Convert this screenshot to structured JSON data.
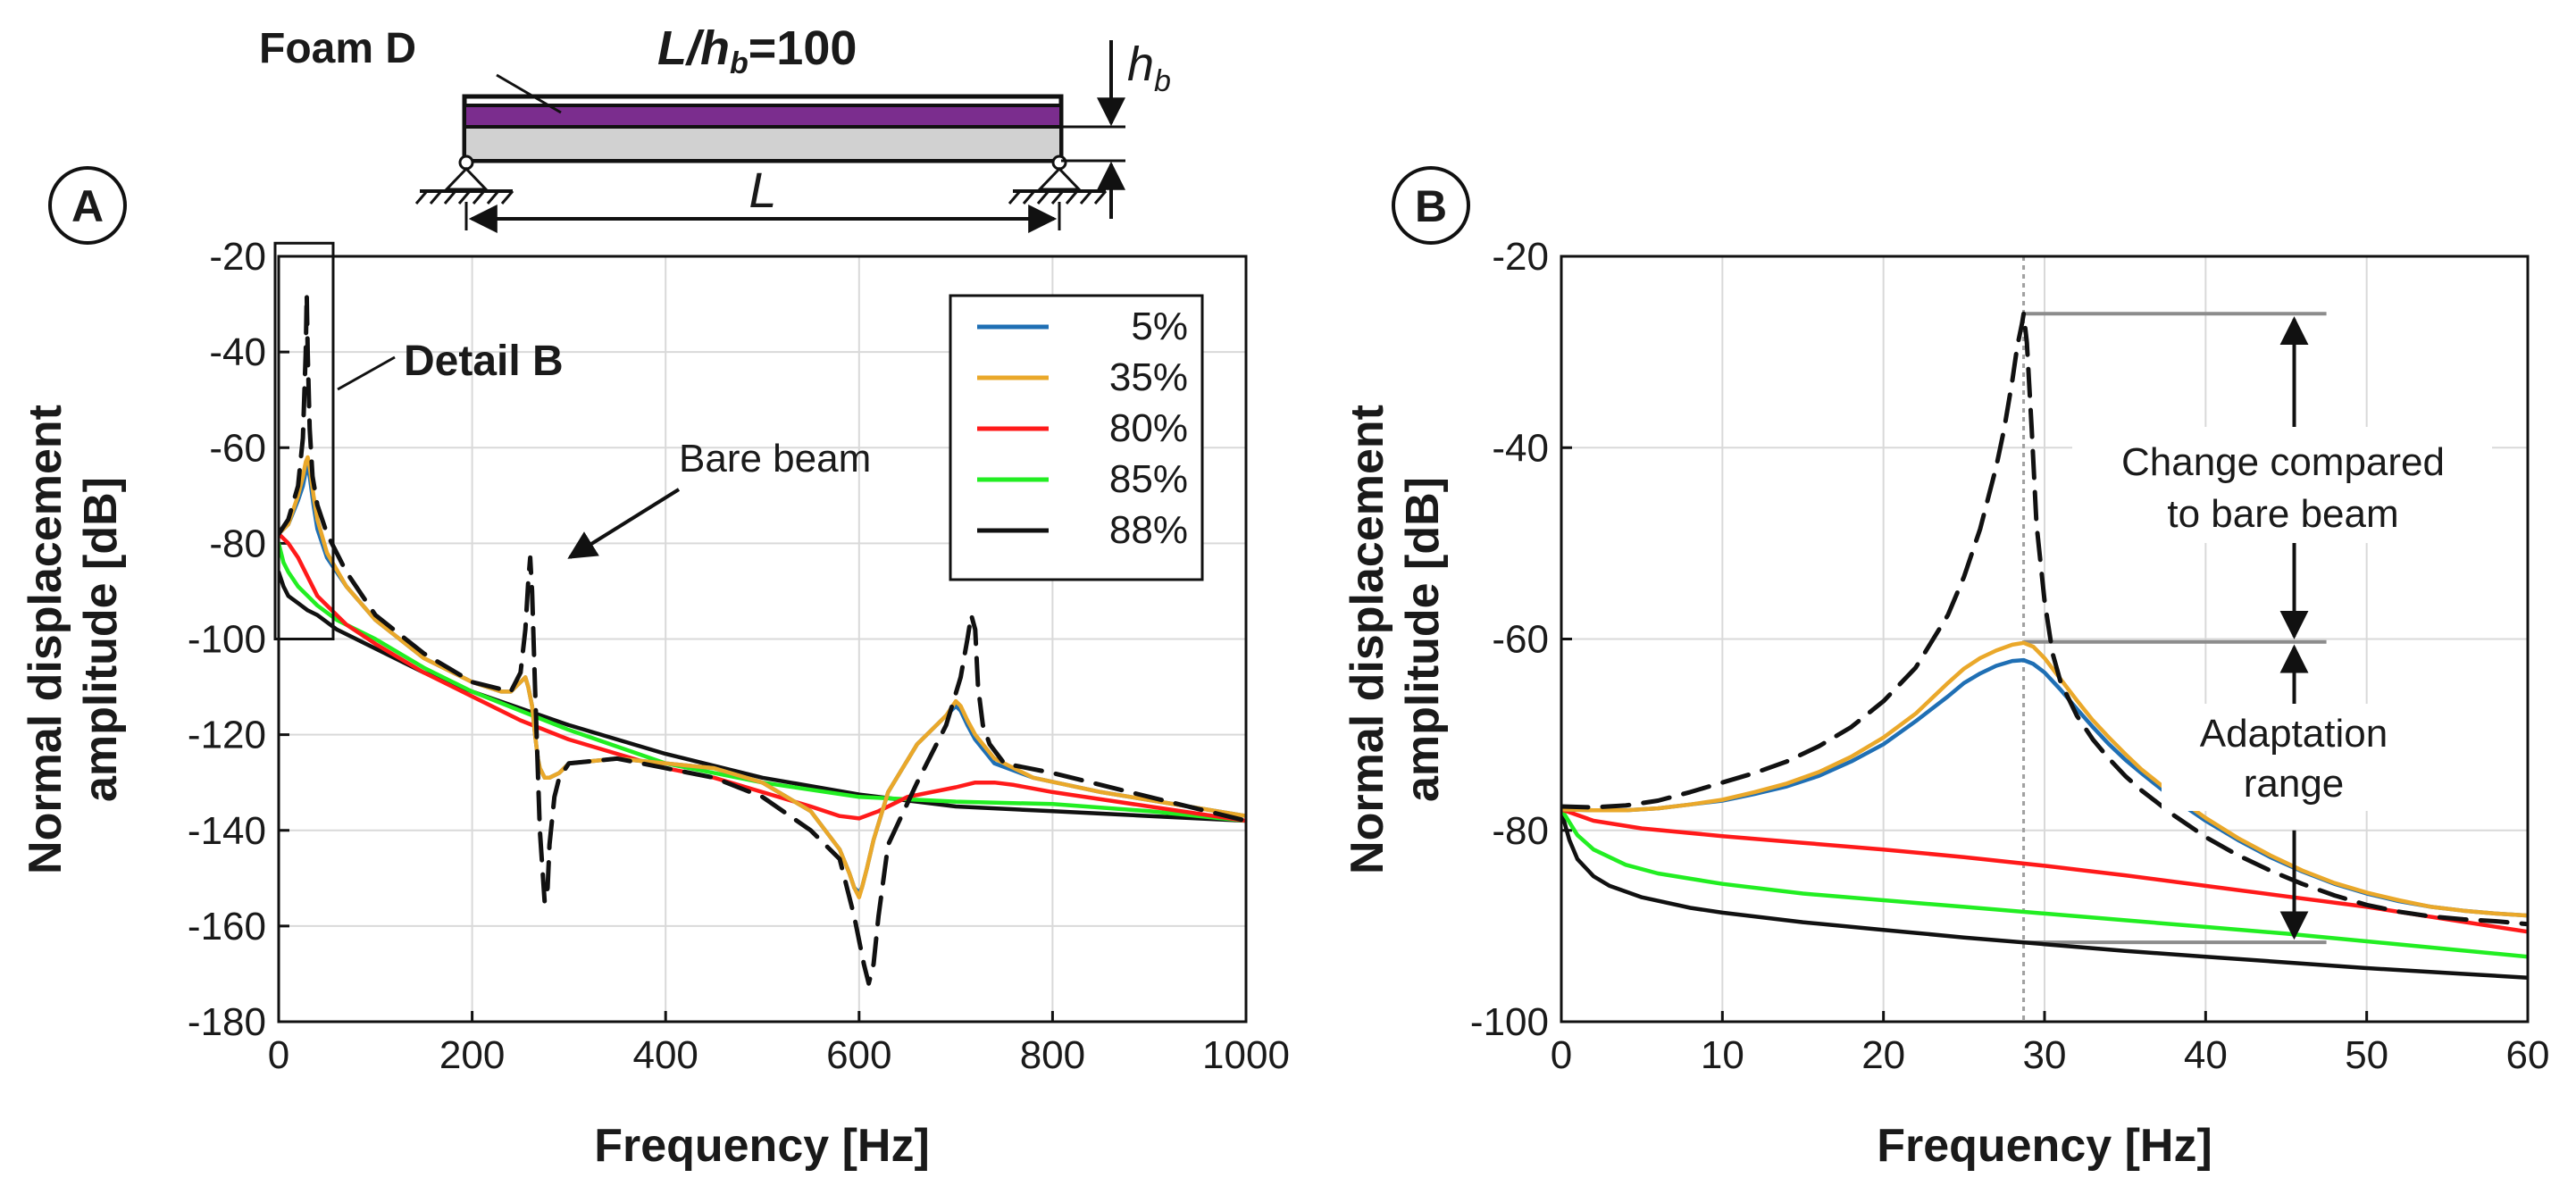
{
  "colors": {
    "s5": "#1f6fb4",
    "s35": "#eaa82a",
    "s80": "#ff1a1a",
    "s85": "#22ee22",
    "s88": "#111111",
    "bare": "#111111",
    "foam": "#7b2d8e",
    "beam": "#d1d1d1",
    "ref": "#8c8c8c"
  },
  "schematic": {
    "foam_label": "Foam D",
    "ratio_label_a": "L/h",
    "ratio_label_sub": "b",
    "ratio_label_b": "=100",
    "hb_label": "h",
    "hb_sub": "b",
    "length_label": "L"
  },
  "chart_data": [
    {
      "type": "line",
      "panel": "A",
      "xlabel": "Frequency [Hz]",
      "ylabel_line1": "Normal displacement",
      "ylabel_line2": "amplitude [dB]",
      "xlim": [
        0,
        1000
      ],
      "ylim": [
        -180,
        -20
      ],
      "xticks": [
        0,
        200,
        400,
        600,
        800,
        1000
      ],
      "yticks": [
        -20,
        -40,
        -60,
        -80,
        -100,
        -120,
        -140,
        -160,
        -180
      ],
      "grid": true,
      "legend": {
        "position": "top-right",
        "entries": [
          "5%",
          "35%",
          "80%",
          "85%",
          "88%"
        ]
      },
      "annotations": {
        "detail": "Detail B",
        "bare": "Bare beam"
      },
      "detail_box": {
        "x": [
          0,
          60
        ],
        "y": [
          -100,
          -18
        ]
      },
      "series": [
        {
          "name": "Bare beam",
          "key": "bare",
          "dashed": true,
          "x": [
            0,
            10,
            20,
            25,
            28,
            29,
            30,
            32,
            35,
            40,
            50,
            70,
            100,
            150,
            200,
            240,
            250,
            255,
            258,
            260,
            262,
            265,
            270,
            275,
            278,
            280,
            285,
            290,
            300,
            350,
            400,
            450,
            500,
            550,
            580,
            595,
            605,
            610,
            615,
            620,
            630,
            660,
            690,
            705,
            712,
            716,
            720,
            723,
            728,
            735,
            750,
            800,
            900,
            1000
          ],
          "y": [
            -78,
            -75,
            -68,
            -58,
            -40,
            -28,
            -40,
            -56,
            -66,
            -72,
            -78,
            -86,
            -95,
            -103,
            -109,
            -111,
            -107,
            -98,
            -88,
            -83,
            -90,
            -110,
            -140,
            -155,
            -152,
            -143,
            -133,
            -129,
            -126,
            -125,
            -127,
            -129,
            -133,
            -140,
            -146,
            -158,
            -168,
            -172,
            -168,
            -158,
            -143,
            -130,
            -118,
            -108,
            -100,
            -95,
            -98,
            -110,
            -118,
            -122,
            -126,
            -128,
            -133,
            -138
          ]
        },
        {
          "name": "5%",
          "key": "s5",
          "x": [
            0,
            10,
            20,
            25,
            28,
            30,
            32,
            36,
            40,
            50,
            70,
            100,
            150,
            200,
            230,
            240,
            250,
            255,
            258,
            262,
            265,
            268,
            270,
            275,
            280,
            290,
            300,
            350,
            400,
            450,
            500,
            550,
            580,
            590,
            595,
            600,
            603,
            608,
            615,
            630,
            660,
            690,
            700,
            705,
            712,
            720,
            740,
            780,
            850,
            1000
          ],
          "y": [
            -78,
            -76,
            -71,
            -68,
            -65,
            -64,
            -66,
            -72,
            -77,
            -83,
            -89,
            -96,
            -104,
            -109,
            -111,
            -111,
            -109,
            -108,
            -110,
            -114,
            -120,
            -125,
            -127,
            -129,
            -129,
            -128,
            -126,
            -125,
            -126,
            -127,
            -130,
            -136,
            -144,
            -149,
            -152,
            -153,
            -152,
            -148,
            -142,
            -132,
            -122,
            -116,
            -114,
            -115,
            -118,
            -121,
            -126,
            -129,
            -132,
            -137
          ]
        },
        {
          "name": "35%",
          "key": "s35",
          "x": [
            0,
            10,
            20,
            25,
            28,
            30,
            32,
            36,
            40,
            50,
            70,
            100,
            150,
            200,
            230,
            240,
            250,
            255,
            258,
            262,
            265,
            268,
            270,
            275,
            280,
            290,
            300,
            350,
            400,
            450,
            500,
            550,
            580,
            590,
            595,
            600,
            603,
            608,
            615,
            630,
            660,
            690,
            700,
            705,
            712,
            720,
            740,
            780,
            850,
            1000
          ],
          "y": [
            -78,
            -76,
            -70,
            -66,
            -63,
            -62,
            -64,
            -70,
            -75,
            -82,
            -89,
            -96,
            -104,
            -109,
            -111,
            -111,
            -109,
            -108,
            -110,
            -114,
            -120,
            -125,
            -127,
            -129,
            -129,
            -128,
            -126,
            -125,
            -126,
            -127,
            -130,
            -136,
            -144,
            -149,
            -152,
            -154,
            -152,
            -148,
            -142,
            -132,
            -122,
            -116,
            -113,
            -114,
            -117,
            -120,
            -125,
            -129,
            -132,
            -137
          ]
        },
        {
          "name": "80%",
          "key": "s80",
          "x": [
            0,
            10,
            20,
            30,
            40,
            50,
            70,
            100,
            150,
            200,
            250,
            300,
            350,
            400,
            450,
            500,
            550,
            580,
            600,
            620,
            650,
            700,
            720,
            740,
            760,
            800,
            900,
            1000
          ],
          "y": [
            -78,
            -80,
            -83,
            -87,
            -91,
            -93,
            -97,
            -101,
            -107,
            -112,
            -117,
            -121,
            -124,
            -127,
            -129,
            -132,
            -135,
            -137,
            -137.5,
            -136,
            -133,
            -131,
            -130,
            -130,
            -130.5,
            -132,
            -135,
            -138
          ]
        },
        {
          "name": "85%",
          "key": "s85",
          "x": [
            0,
            5,
            10,
            20,
            30,
            40,
            60,
            100,
            150,
            200,
            300,
            400,
            500,
            600,
            700,
            800,
            900,
            1000
          ],
          "y": [
            -80,
            -84,
            -86,
            -89,
            -91,
            -93,
            -96,
            -100,
            -106,
            -111,
            -119,
            -126,
            -130,
            -133,
            -134,
            -134.5,
            -136,
            -138
          ]
        },
        {
          "name": "88%",
          "key": "s88",
          "x": [
            0,
            5,
            10,
            20,
            30,
            40,
            60,
            100,
            150,
            200,
            300,
            400,
            500,
            600,
            700,
            800,
            900,
            1000
          ],
          "y": [
            -86,
            -89,
            -91,
            -92.5,
            -94,
            -95,
            -98,
            -102,
            -107,
            -111,
            -118,
            -124,
            -129,
            -132.5,
            -135,
            -136,
            -137,
            -138
          ]
        }
      ]
    },
    {
      "type": "line",
      "panel": "B",
      "xlabel": "Frequency [Hz]",
      "ylabel_line1": "Normal displacement",
      "ylabel_line2": "amplitude [dB]",
      "xlim": [
        0,
        60
      ],
      "ylim": [
        -100,
        -20
      ],
      "xticks": [
        0,
        10,
        20,
        30,
        40,
        50,
        60
      ],
      "yticks": [
        -20,
        -40,
        -60,
        -80,
        -100
      ],
      "grid": true,
      "annotations": {
        "change_line1": "Change compared",
        "change_line2": "to bare beam",
        "adapt_line1": "Adaptation",
        "adapt_line2": "range"
      },
      "reference_levels": {
        "vertical_x": 28.7,
        "peak_bare": -26,
        "peak_foam": -60.3,
        "lowest": -91.7
      },
      "series": [
        {
          "name": "Bare beam",
          "key": "bare",
          "dashed": true,
          "x": [
            0,
            2,
            4,
            6,
            8,
            10,
            12,
            14,
            16,
            18,
            20,
            22,
            24,
            25,
            26,
            27,
            27.5,
            28,
            28.3,
            28.6,
            28.7,
            28.9,
            29.2,
            29.5,
            30,
            30.5,
            31,
            32,
            33,
            34,
            35,
            36,
            38,
            40,
            42,
            44,
            46,
            48,
            50,
            52,
            54,
            56,
            58,
            60
          ],
          "y": [
            -77.5,
            -77.6,
            -77.4,
            -76.9,
            -76,
            -75,
            -74,
            -72.8,
            -71.2,
            -69.2,
            -66.5,
            -63,
            -57.5,
            -53.5,
            -48.5,
            -42,
            -38,
            -33,
            -29.5,
            -27,
            -26,
            -29,
            -38,
            -48,
            -56,
            -61.5,
            -64.5,
            -68,
            -70.5,
            -72.5,
            -74.3,
            -75.8,
            -78.4,
            -80.7,
            -82.6,
            -84.2,
            -85.6,
            -86.8,
            -87.8,
            -88.5,
            -89,
            -89.3,
            -89.5,
            -89.8
          ]
        },
        {
          "name": "5%",
          "key": "s5",
          "x": [
            0,
            2,
            4,
            6,
            8,
            10,
            12,
            14,
            16,
            18,
            20,
            22,
            24,
            25,
            26,
            27,
            28,
            28.7,
            29.3,
            30,
            31,
            32,
            33,
            34,
            35,
            36,
            38,
            40,
            42,
            44,
            46,
            48,
            50,
            52,
            54,
            56,
            58,
            60
          ],
          "y": [
            -77.8,
            -77.9,
            -77.9,
            -77.7,
            -77.3,
            -76.9,
            -76.2,
            -75.4,
            -74.3,
            -72.8,
            -71,
            -68.6,
            -66,
            -64.6,
            -63.6,
            -62.8,
            -62.3,
            -62.2,
            -62.6,
            -63.5,
            -65.3,
            -67.3,
            -69.2,
            -71,
            -72.6,
            -74,
            -76.7,
            -79,
            -81,
            -82.8,
            -84.3,
            -85.6,
            -86.6,
            -87.4,
            -88,
            -88.4,
            -88.7,
            -88.9
          ]
        },
        {
          "name": "35%",
          "key": "s35",
          "x": [
            0,
            2,
            4,
            6,
            8,
            10,
            12,
            14,
            16,
            18,
            20,
            22,
            24,
            25,
            26,
            27,
            28,
            28.7,
            29.3,
            30,
            31,
            32,
            33,
            34,
            35,
            36,
            38,
            40,
            42,
            44,
            46,
            48,
            50,
            52,
            54,
            56,
            58,
            60
          ],
          "y": [
            -77.8,
            -77.9,
            -77.9,
            -77.7,
            -77.3,
            -76.8,
            -76,
            -75.1,
            -73.9,
            -72.3,
            -70.3,
            -67.8,
            -64.6,
            -63.1,
            -62,
            -61.2,
            -60.6,
            -60.4,
            -60.8,
            -62,
            -64.2,
            -66.4,
            -68.5,
            -70.3,
            -72,
            -73.6,
            -76.3,
            -78.7,
            -80.8,
            -82.6,
            -84.2,
            -85.5,
            -86.5,
            -87.3,
            -88,
            -88.4,
            -88.7,
            -88.9
          ]
        },
        {
          "name": "80%",
          "key": "s80",
          "x": [
            0,
            2,
            5,
            10,
            15,
            20,
            25,
            30,
            35,
            40,
            45,
            50,
            55,
            60
          ],
          "y": [
            -77.8,
            -79,
            -79.8,
            -80.6,
            -81.3,
            -82,
            -82.8,
            -83.7,
            -84.7,
            -85.8,
            -86.9,
            -88,
            -89.3,
            -90.6
          ]
        },
        {
          "name": "85%",
          "key": "s85",
          "x": [
            0,
            1,
            2,
            4,
            6,
            10,
            15,
            20,
            25,
            30,
            35,
            40,
            45,
            50,
            55,
            60
          ],
          "y": [
            -77.8,
            -80.5,
            -82,
            -83.6,
            -84.5,
            -85.6,
            -86.6,
            -87.3,
            -88,
            -88.7,
            -89.4,
            -90.1,
            -90.8,
            -91.6,
            -92.4,
            -93.2
          ]
        },
        {
          "name": "88%",
          "key": "s88",
          "x": [
            0,
            0.5,
            1,
            2,
            3,
            5,
            8,
            10,
            15,
            20,
            25,
            30,
            35,
            40,
            45,
            50,
            55,
            60
          ],
          "y": [
            -78,
            -81,
            -83,
            -84.8,
            -85.8,
            -87,
            -88.1,
            -88.6,
            -89.6,
            -90.4,
            -91.2,
            -91.9,
            -92.6,
            -93.2,
            -93.8,
            -94.4,
            -94.9,
            -95.4
          ]
        }
      ]
    }
  ]
}
